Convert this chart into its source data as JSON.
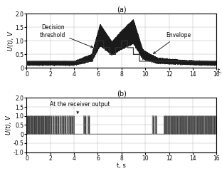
{
  "title_a": "(a)",
  "title_b": "(b)",
  "ylabel_a": "U(t), V",
  "ylabel_b": "U(t), V",
  "xlabel": "t, s",
  "xlim": [
    0,
    16
  ],
  "ylim_a": [
    0,
    2.0
  ],
  "ylim_b": [
    -1.0,
    2.0
  ],
  "yticks_a": [
    0,
    0.5,
    1.0,
    1.5,
    2.0
  ],
  "yticks_b": [
    -1.0,
    -0.5,
    0.0,
    0.5,
    1.0,
    1.5,
    2.0
  ],
  "xticks": [
    0,
    2,
    4,
    6,
    8,
    10,
    12,
    14,
    16
  ],
  "label_decision": "Decision\nthreshold",
  "label_envelope": "Envelope",
  "label_receiver": "At the receiver output"
}
